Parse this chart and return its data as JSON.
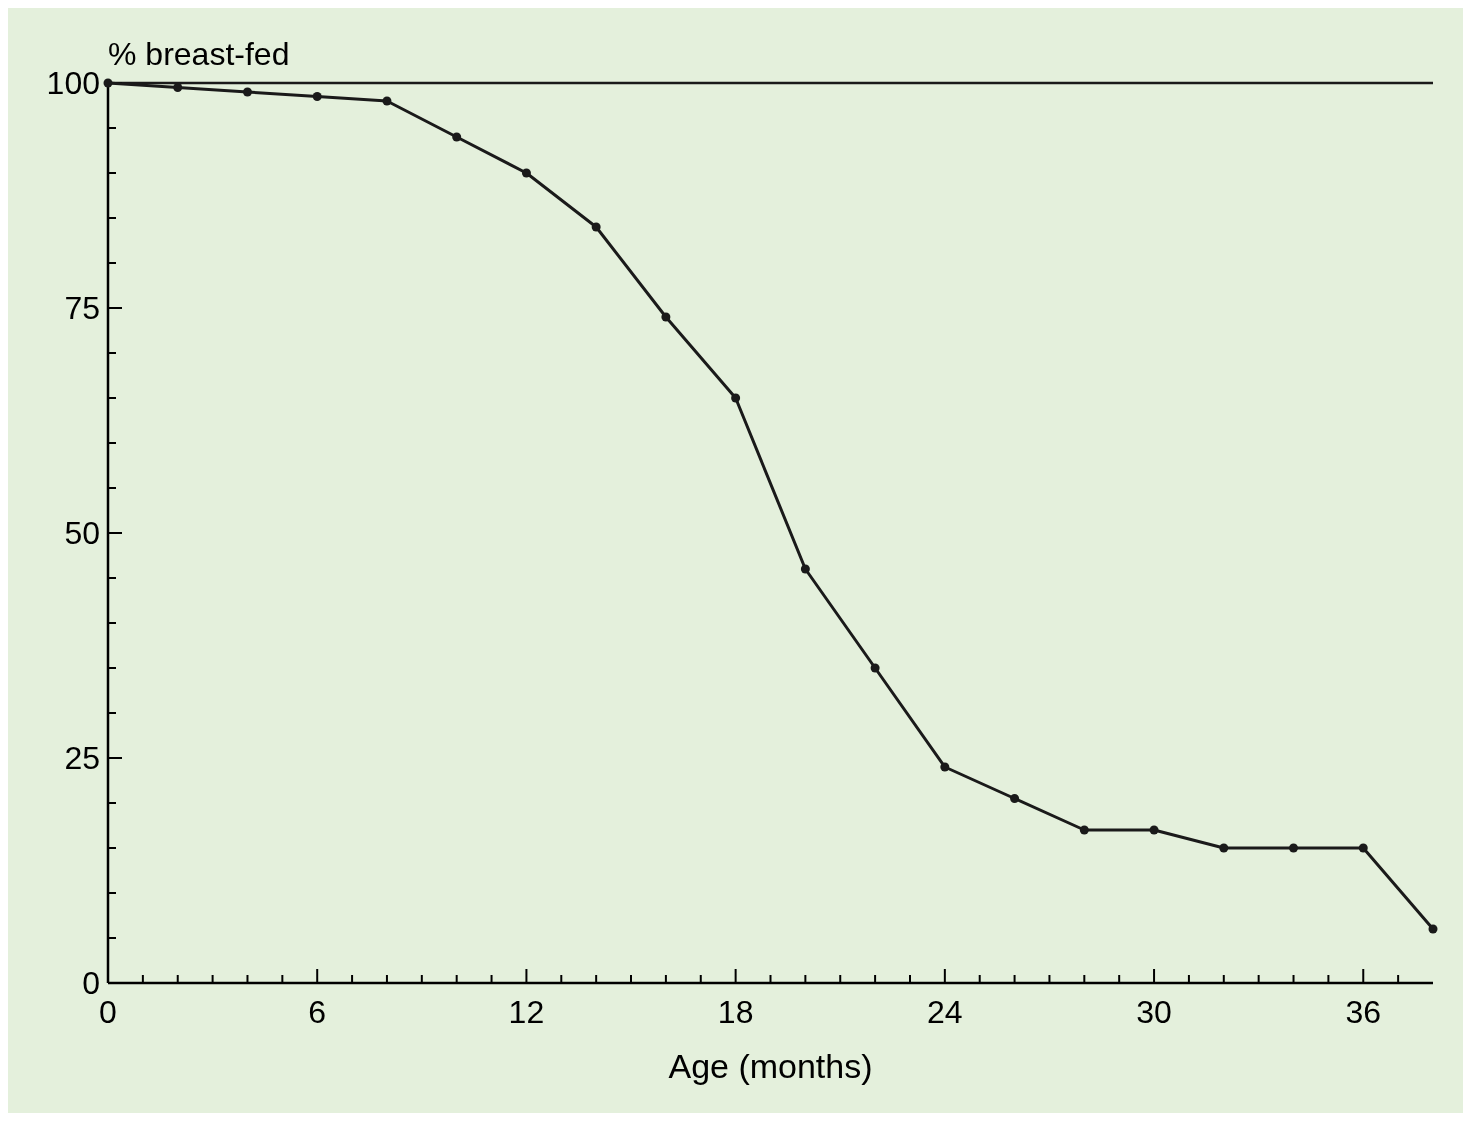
{
  "chart_data": {
    "type": "line",
    "xlabel": "Age (months)",
    "ylabel": "% breast-fed",
    "x": [
      0,
      2,
      4,
      6,
      8,
      10,
      12,
      14,
      16,
      18,
      20,
      22,
      24,
      26,
      28,
      30,
      32,
      34,
      36,
      38
    ],
    "series": [
      {
        "color": "#1a1a1a",
        "values": [
          100,
          99.5,
          99,
          98.5,
          98,
          94,
          90,
          84,
          74,
          65,
          46,
          35,
          24,
          20.5,
          17,
          17,
          15,
          15,
          15,
          6
        ]
      }
    ],
    "xlim": [
      0,
      38
    ],
    "ylim": [
      0,
      100
    ],
    "xticks": [
      0,
      {
        "value": 1,
        "label": null
      },
      {
        "value": 2,
        "label": null
      },
      {
        "value": 3,
        "label": null
      },
      {
        "value": 4,
        "label": null
      },
      {
        "value": 5,
        "label": null
      },
      6,
      {
        "value": 7,
        "label": null
      },
      {
        "value": 8,
        "label": null
      },
      {
        "value": 9,
        "label": null
      },
      {
        "value": 10,
        "label": null
      },
      {
        "value": 11,
        "label": null
      },
      12,
      {
        "value": 13,
        "label": null
      },
      {
        "value": 14,
        "label": null
      },
      {
        "value": 15,
        "label": null
      },
      {
        "value": 16,
        "label": null
      },
      {
        "value": 17,
        "label": null
      },
      18,
      {
        "value": 19,
        "label": null
      },
      {
        "value": 20,
        "label": null
      },
      {
        "value": 21,
        "label": null
      },
      {
        "value": 22,
        "label": null
      },
      {
        "value": 23,
        "label": null
      },
      24,
      {
        "value": 25,
        "label": null
      },
      {
        "value": 26,
        "label": null
      },
      {
        "value": 27,
        "label": null
      },
      {
        "value": 28,
        "label": null
      },
      {
        "value": 29,
        "label": null
      },
      30,
      {
        "value": 31,
        "label": null
      },
      {
        "value": 32,
        "label": null
      },
      {
        "value": 33,
        "label": null
      },
      {
        "value": 34,
        "label": null
      },
      {
        "value": 35,
        "label": null
      },
      36,
      {
        "value": 37,
        "label": null
      }
    ],
    "yticks": [
      0,
      {
        "value": 5,
        "label": null
      },
      {
        "value": 10,
        "label": null
      },
      {
        "value": 15,
        "label": null
      },
      {
        "value": 20,
        "label": null
      },
      25,
      {
        "value": 30,
        "label": null
      },
      {
        "value": 35,
        "label": null
      },
      {
        "value": 40,
        "label": null
      },
      {
        "value": 45,
        "label": null
      },
      50,
      {
        "value": 55,
        "label": null
      },
      {
        "value": 60,
        "label": null
      },
      {
        "value": 65,
        "label": null
      },
      {
        "value": 70,
        "label": null
      },
      75,
      {
        "value": 80,
        "label": null
      },
      {
        "value": 85,
        "label": null
      },
      {
        "value": 90,
        "label": null
      },
      {
        "value": 95,
        "label": null
      },
      100
    ],
    "ref_lines": [
      {
        "axis": "y",
        "value": 100,
        "label": null,
        "color": "#1a1a1a"
      }
    ],
    "grid": false,
    "marker": "circle",
    "line_style": "solid"
  }
}
